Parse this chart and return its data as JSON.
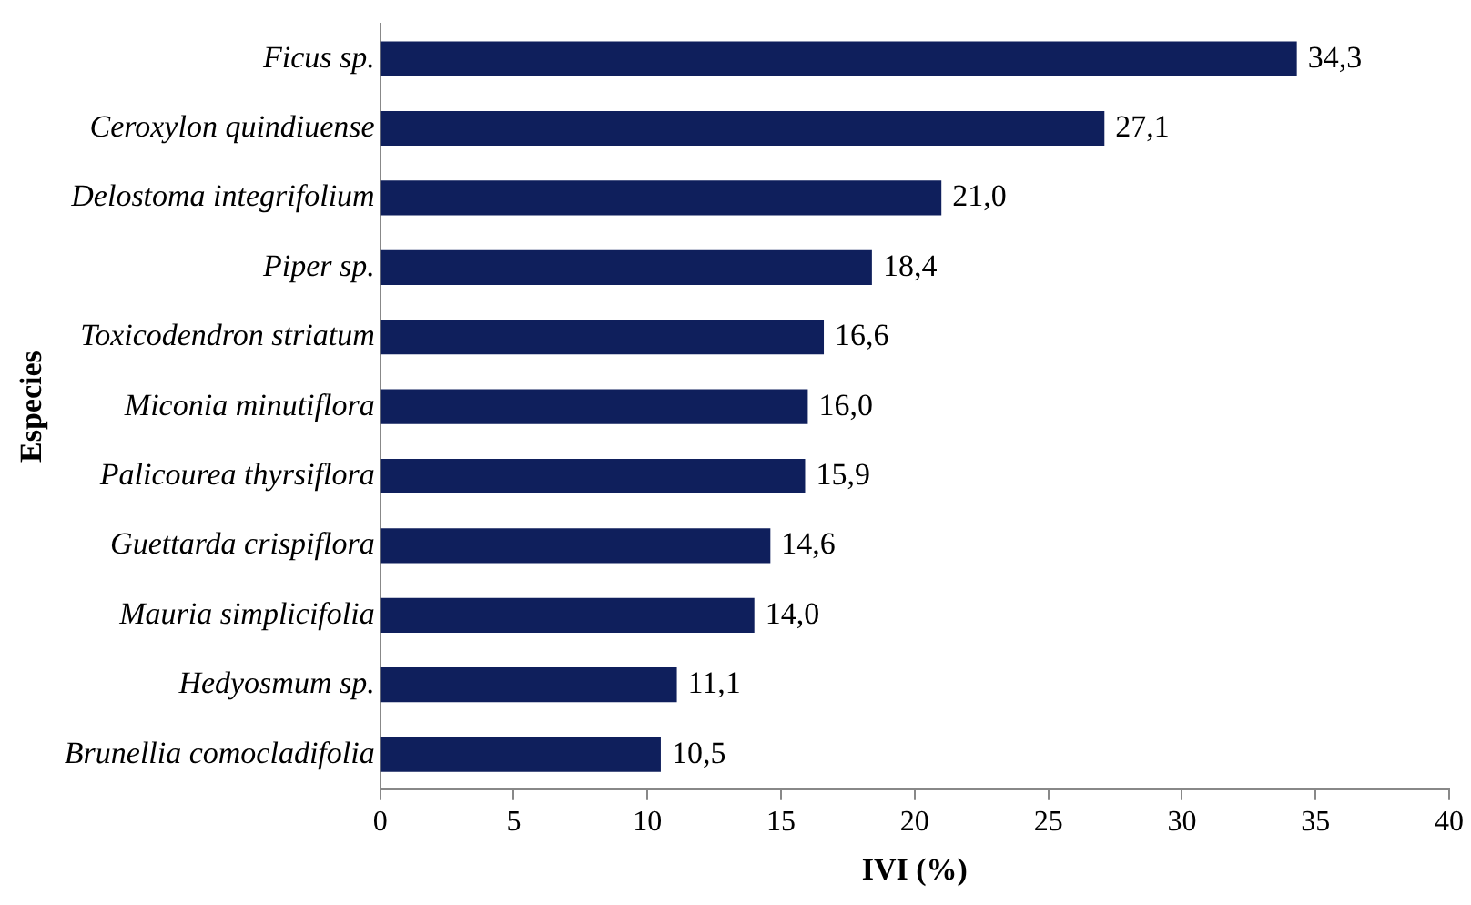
{
  "chart_data": {
    "type": "bar",
    "orientation": "horizontal",
    "xlabel": "IVI (%)",
    "ylabel": "Especies",
    "categories": [
      "Ficus sp.",
      "Ceroxylon quindiuense",
      "Delostoma integrifolium",
      "Piper sp.",
      "Toxicodendron striatum",
      "Miconia minutiflora",
      "Palicourea thyrsiflora",
      "Guettarda crispiflora",
      "Mauria simplicifolia",
      "Hedyosmum sp.",
      "Brunellia comocladifolia"
    ],
    "values": [
      34.3,
      27.1,
      21.0,
      18.4,
      16.6,
      16.0,
      15.9,
      14.6,
      14.0,
      11.1,
      10.5
    ],
    "value_labels": [
      "34,3",
      "27,1",
      "21,0",
      "18,4",
      "16,6",
      "16,0",
      "15,9",
      "14,6",
      "14,0",
      "11,1",
      "10,5"
    ],
    "color": "#0f1f5c",
    "xlim": [
      0,
      40
    ],
    "xticks": [
      0,
      5,
      10,
      15,
      20,
      25,
      30,
      35,
      40
    ],
    "grid": false,
    "legend": false
  }
}
